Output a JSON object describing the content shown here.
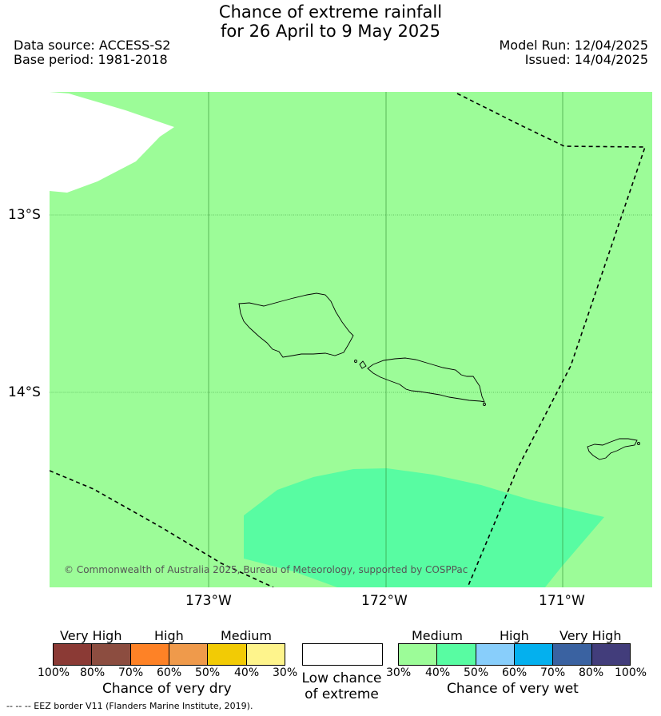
{
  "title": {
    "line1": "Chance of extreme rainfall",
    "line2": "for 26 April to 9 May 2025"
  },
  "meta": {
    "data_source": "Data source: ACCESS-S2",
    "base_period": "Base period: 1981-2018",
    "model_run": "Model Run: 12/04/2025",
    "issued": "Issued: 14/04/2025"
  },
  "map": {
    "lat_labels": [
      "13°S",
      "14°S"
    ],
    "lon_labels": [
      "173°W",
      "172°W",
      "171°W"
    ],
    "copyright": "© Commonwealth of Australia 2025, Bureau of Meteorology, supported by COSPPac",
    "colors": {
      "background_green": "#9cfc98",
      "wet_40_50": "#58fca2",
      "no_data": "#ffffff"
    }
  },
  "legend": {
    "dry": {
      "categories": [
        "Very High",
        "High",
        "Medium"
      ],
      "ticks": [
        "100%",
        "80%",
        "70%",
        "60%",
        "50%",
        "40%",
        "30%"
      ],
      "colors": [
        "#8b3a35",
        "#8c4d40",
        "#fe8226",
        "#ef9a4b",
        "#f2cb05",
        "#fef48c"
      ],
      "caption": "Chance of very dry"
    },
    "neutral": {
      "caption_line1": "Low chance",
      "caption_line2": "of extreme",
      "color": "#ffffff"
    },
    "wet": {
      "categories": [
        "Medium",
        "High",
        "Very High"
      ],
      "ticks": [
        "30%",
        "40%",
        "50%",
        "60%",
        "70%",
        "80%",
        "100%"
      ],
      "colors": [
        "#9cfc98",
        "#58fca2",
        "#88cefb",
        "#04b0ee",
        "#3a62a1",
        "#423d7b"
      ],
      "caption": "Chance of very wet"
    }
  },
  "footnote": "-- -- -- EEZ border V11 (Flanders Marine Institute, 2019)."
}
